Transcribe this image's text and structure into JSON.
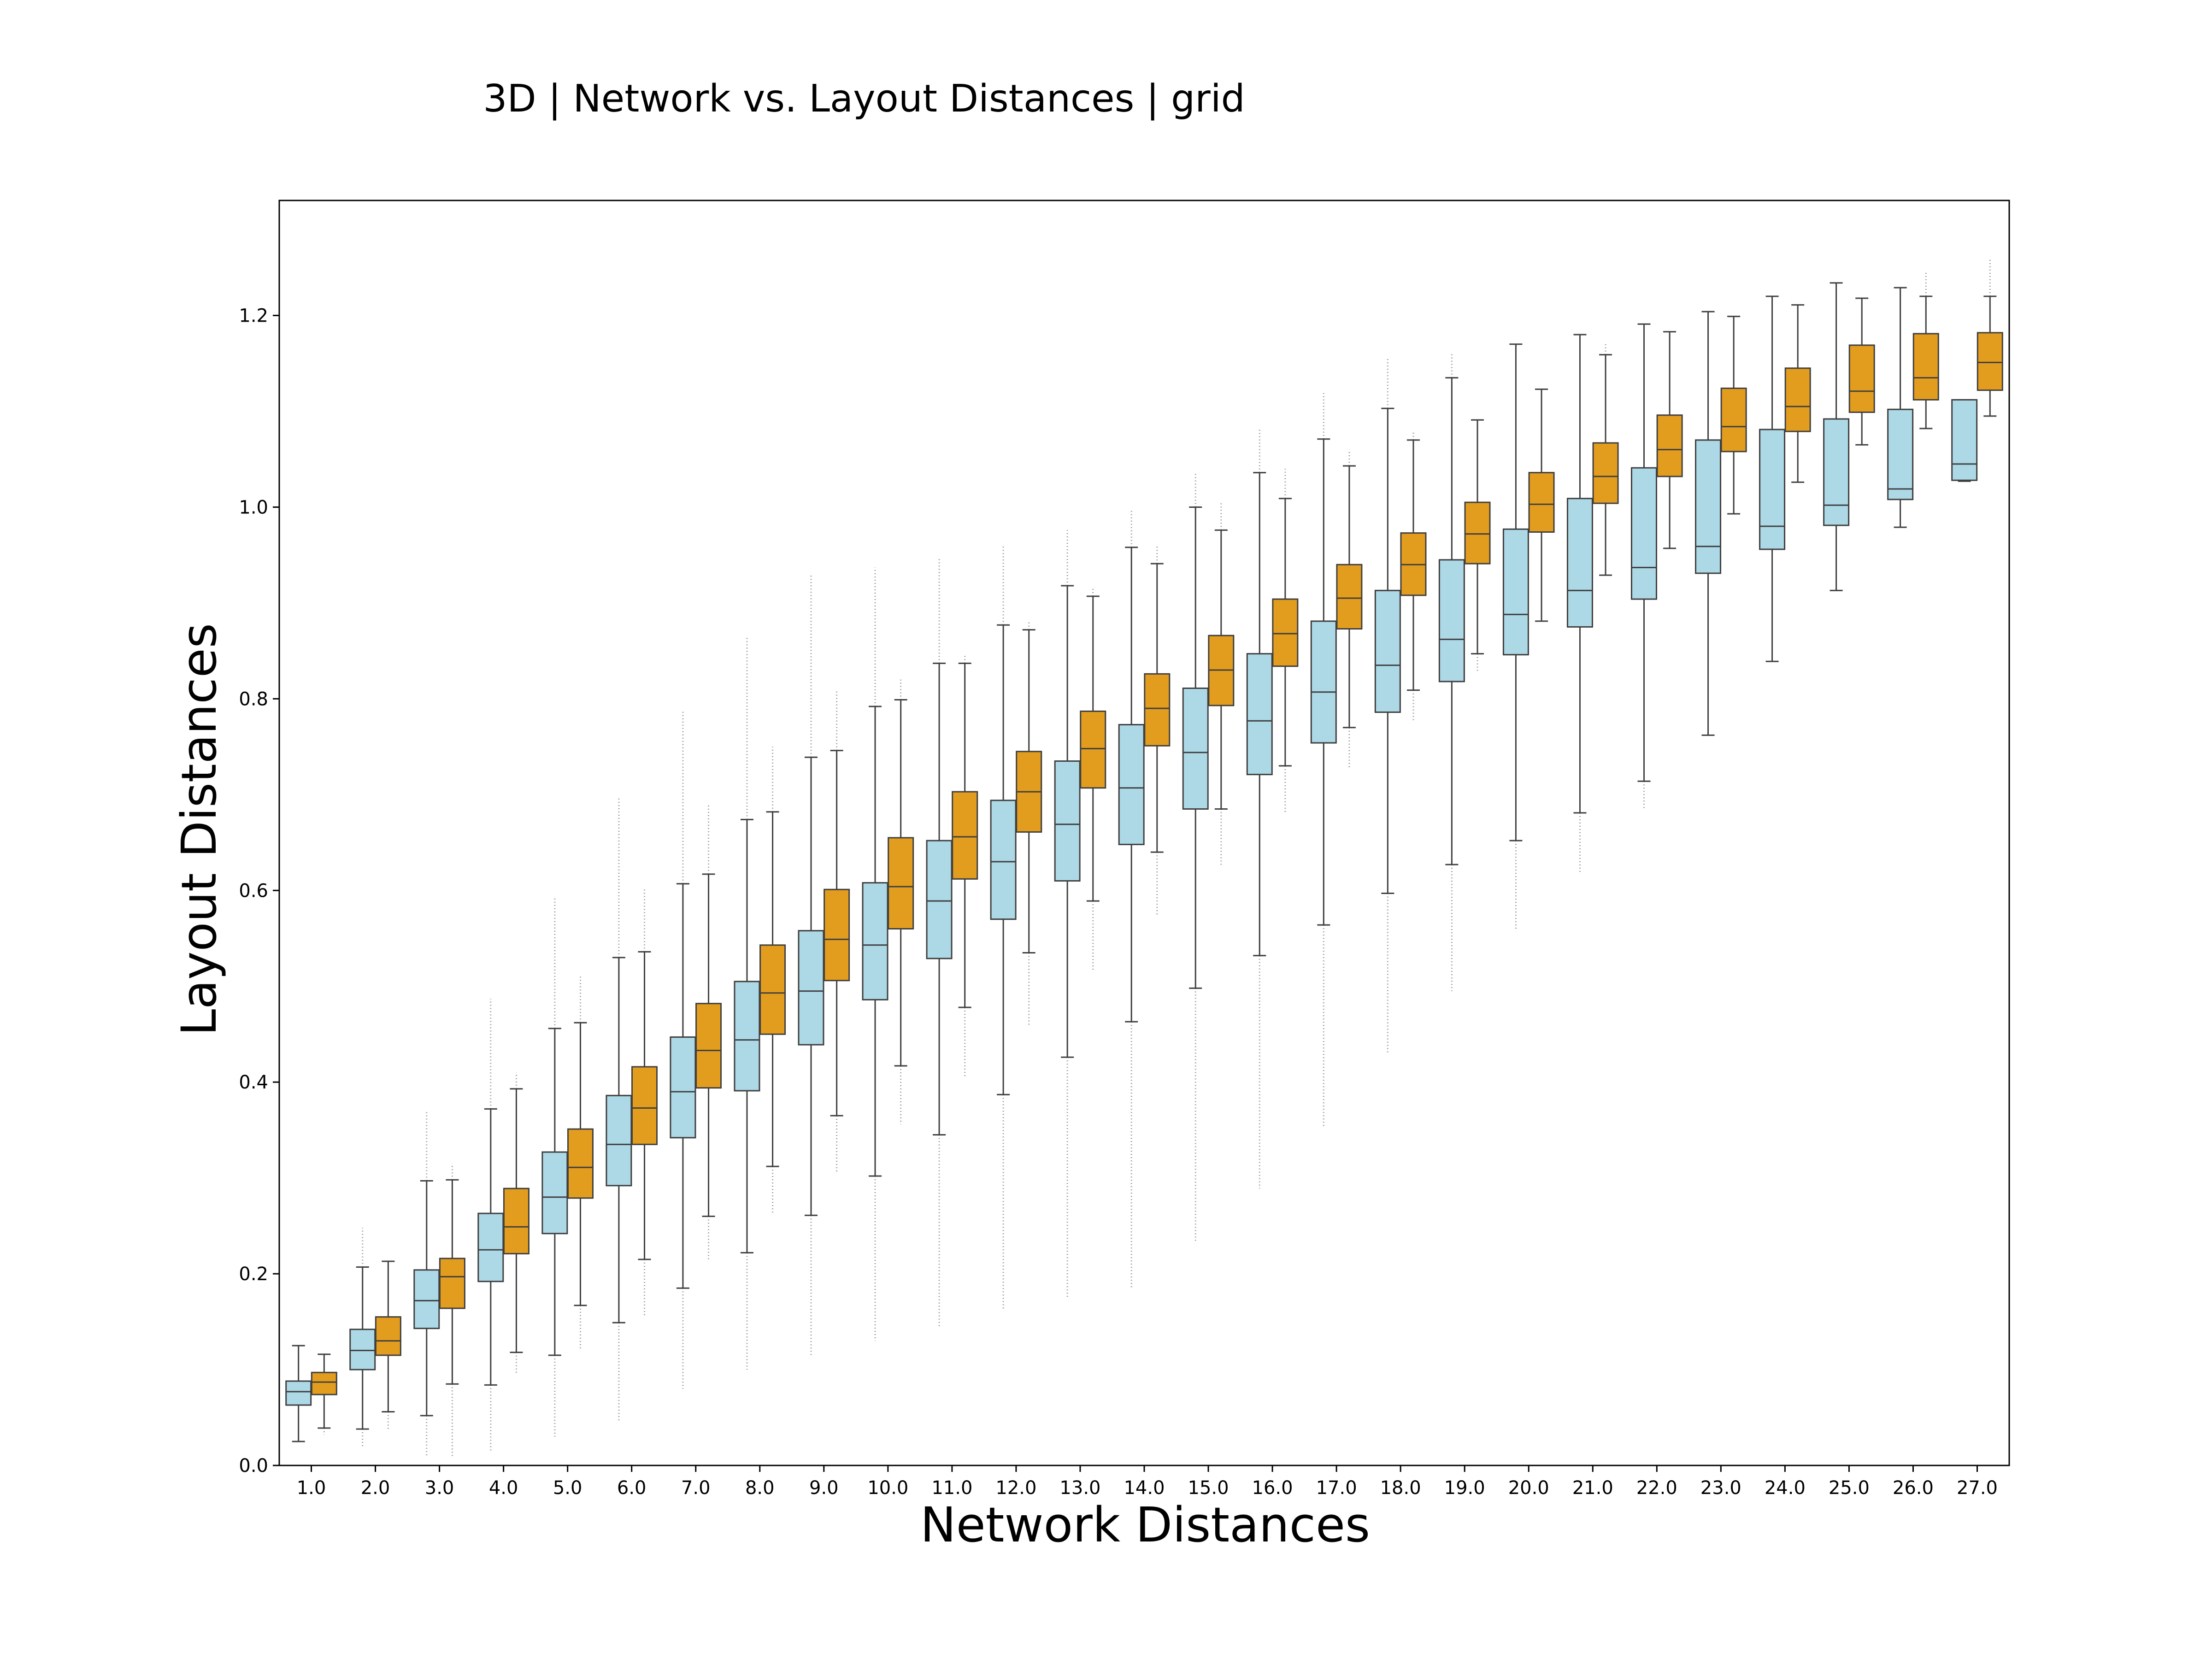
{
  "chart_data": {
    "type": "boxplot",
    "title": "3D | Network vs. Layout Distances | grid",
    "xlabel": "Network Distances",
    "ylabel": "Layout Distances",
    "ylim": [
      0,
      1.32
    ],
    "yticks": [
      "0.0",
      "0.2",
      "0.4",
      "0.6",
      "0.8",
      "1.0",
      "1.2"
    ],
    "grid": false,
    "legend": "none",
    "categories": [
      "1.0",
      "2.0",
      "3.0",
      "4.0",
      "5.0",
      "6.0",
      "7.0",
      "8.0",
      "9.0",
      "10.0",
      "11.0",
      "12.0",
      "13.0",
      "14.0",
      "15.0",
      "16.0",
      "17.0",
      "18.0",
      "19.0",
      "20.0",
      "21.0",
      "22.0",
      "23.0",
      "24.0",
      "25.0",
      "26.0",
      "27.0"
    ],
    "series": [
      {
        "color": "#add8e6",
        "boxes": [
          {
            "whisker_low": 0.025,
            "q1": 0.063,
            "median": 0.077,
            "q3": 0.088,
            "whisker_high": 0.125,
            "outliers_low": 0,
            "outliers_high": 0
          },
          {
            "whisker_low": 0.038,
            "q1": 0.1,
            "median": 0.12,
            "q3": 0.142,
            "whisker_high": 0.207,
            "outliers_low": 0.02,
            "outliers_high": 0.248
          },
          {
            "whisker_low": 0.052,
            "q1": 0.143,
            "median": 0.172,
            "q3": 0.204,
            "whisker_high": 0.297,
            "outliers_low": 0.01,
            "outliers_high": 0.37
          },
          {
            "whisker_low": 0.084,
            "q1": 0.192,
            "median": 0.225,
            "q3": 0.263,
            "whisker_high": 0.372,
            "outliers_low": 0.015,
            "outliers_high": 0.487
          },
          {
            "whisker_low": 0.115,
            "q1": 0.242,
            "median": 0.28,
            "q3": 0.327,
            "whisker_high": 0.456,
            "outliers_low": 0.03,
            "outliers_high": 0.592
          },
          {
            "whisker_low": 0.149,
            "q1": 0.292,
            "median": 0.335,
            "q3": 0.386,
            "whisker_high": 0.53,
            "outliers_low": 0.045,
            "outliers_high": 0.698
          },
          {
            "whisker_low": 0.185,
            "q1": 0.342,
            "median": 0.39,
            "q3": 0.447,
            "whisker_high": 0.607,
            "outliers_low": 0.08,
            "outliers_high": 0.787
          },
          {
            "whisker_low": 0.222,
            "q1": 0.391,
            "median": 0.444,
            "q3": 0.505,
            "whisker_high": 0.674,
            "outliers_low": 0.1,
            "outliers_high": 0.865
          },
          {
            "whisker_low": 0.261,
            "q1": 0.439,
            "median": 0.495,
            "q3": 0.558,
            "whisker_high": 0.739,
            "outliers_low": 0.115,
            "outliers_high": 0.93
          },
          {
            "whisker_low": 0.302,
            "q1": 0.486,
            "median": 0.543,
            "q3": 0.608,
            "whisker_high": 0.792,
            "outliers_low": 0.13,
            "outliers_high": 0.937
          },
          {
            "whisker_low": 0.345,
            "q1": 0.529,
            "median": 0.589,
            "q3": 0.652,
            "whisker_high": 0.837,
            "outliers_low": 0.145,
            "outliers_high": 0.948
          },
          {
            "whisker_low": 0.387,
            "q1": 0.57,
            "median": 0.63,
            "q3": 0.694,
            "whisker_high": 0.877,
            "outliers_low": 0.162,
            "outliers_high": 0.96
          },
          {
            "whisker_low": 0.426,
            "q1": 0.61,
            "median": 0.669,
            "q3": 0.735,
            "whisker_high": 0.918,
            "outliers_low": 0.176,
            "outliers_high": 0.976
          },
          {
            "whisker_low": 0.463,
            "q1": 0.648,
            "median": 0.707,
            "q3": 0.773,
            "whisker_high": 0.958,
            "outliers_low": 0.184,
            "outliers_high": 0.997
          },
          {
            "whisker_low": 0.498,
            "q1": 0.685,
            "median": 0.744,
            "q3": 0.811,
            "whisker_high": 1.0,
            "outliers_low": 0.234,
            "outliers_high": 1.036
          },
          {
            "whisker_low": 0.532,
            "q1": 0.721,
            "median": 0.777,
            "q3": 0.847,
            "whisker_high": 1.036,
            "outliers_low": 0.289,
            "outliers_high": 1.082
          },
          {
            "whisker_low": 0.564,
            "q1": 0.754,
            "median": 0.807,
            "q3": 0.881,
            "whisker_high": 1.071,
            "outliers_low": 0.354,
            "outliers_high": 1.119
          },
          {
            "whisker_low": 0.597,
            "q1": 0.786,
            "median": 0.835,
            "q3": 0.913,
            "whisker_high": 1.103,
            "outliers_low": 0.43,
            "outliers_high": 1.156
          },
          {
            "whisker_low": 0.627,
            "q1": 0.818,
            "median": 0.862,
            "q3": 0.945,
            "whisker_high": 1.135,
            "outliers_low": 0.495,
            "outliers_high": 1.161
          },
          {
            "whisker_low": 0.652,
            "q1": 0.846,
            "median": 0.888,
            "q3": 0.977,
            "whisker_high": 1.17,
            "outliers_low": 0.56,
            "outliers_high": 0
          },
          {
            "whisker_low": 0.681,
            "q1": 0.875,
            "median": 0.913,
            "q3": 1.009,
            "whisker_high": 1.18,
            "outliers_low": 0.617,
            "outliers_high": 0
          },
          {
            "whisker_low": 0.714,
            "q1": 0.904,
            "median": 0.937,
            "q3": 1.041,
            "whisker_high": 1.191,
            "outliers_low": 0.684,
            "outliers_high": 0
          },
          {
            "whisker_low": 0.762,
            "q1": 0.931,
            "median": 0.959,
            "q3": 1.07,
            "whisker_high": 1.204,
            "outliers_low": 0,
            "outliers_high": 0
          },
          {
            "whisker_low": 0.839,
            "q1": 0.956,
            "median": 0.98,
            "q3": 1.081,
            "whisker_high": 1.22,
            "outliers_low": 0,
            "outliers_high": 0
          },
          {
            "whisker_low": 0.913,
            "q1": 0.981,
            "median": 1.002,
            "q3": 1.092,
            "whisker_high": 1.234,
            "outliers_low": 0,
            "outliers_high": 0
          },
          {
            "whisker_low": 0.979,
            "q1": 1.008,
            "median": 1.019,
            "q3": 1.102,
            "whisker_high": 1.229,
            "outliers_low": 0,
            "outliers_high": 0
          },
          {
            "whisker_low": 1.027,
            "q1": 1.028,
            "median": 1.045,
            "q3": 1.112,
            "whisker_high": 1.112,
            "outliers_low": 0,
            "outliers_high": 0
          }
        ]
      },
      {
        "color": "#e39d1e",
        "boxes": [
          {
            "whisker_low": 0.039,
            "q1": 0.074,
            "median": 0.087,
            "q3": 0.097,
            "whisker_high": 0.116,
            "outliers_low": 0.032,
            "outliers_high": 0
          },
          {
            "whisker_low": 0.056,
            "q1": 0.115,
            "median": 0.13,
            "q3": 0.155,
            "whisker_high": 0.213,
            "outliers_low": 0.037,
            "outliers_high": 0
          },
          {
            "whisker_low": 0.085,
            "q1": 0.164,
            "median": 0.197,
            "q3": 0.216,
            "whisker_high": 0.298,
            "outliers_low": 0.01,
            "outliers_high": 0.315
          },
          {
            "whisker_low": 0.118,
            "q1": 0.221,
            "median": 0.249,
            "q3": 0.289,
            "whisker_high": 0.393,
            "outliers_low": 0.095,
            "outliers_high": 0.41
          },
          {
            "whisker_low": 0.167,
            "q1": 0.279,
            "median": 0.311,
            "q3": 0.351,
            "whisker_high": 0.462,
            "outliers_low": 0.121,
            "outliers_high": 0.51
          },
          {
            "whisker_low": 0.215,
            "q1": 0.335,
            "median": 0.373,
            "q3": 0.416,
            "whisker_high": 0.536,
            "outliers_low": 0.155,
            "outliers_high": 0.601
          },
          {
            "whisker_low": 0.26,
            "q1": 0.394,
            "median": 0.433,
            "q3": 0.482,
            "whisker_high": 0.617,
            "outliers_low": 0.214,
            "outliers_high": 0.69
          },
          {
            "whisker_low": 0.312,
            "q1": 0.45,
            "median": 0.493,
            "q3": 0.543,
            "whisker_high": 0.682,
            "outliers_low": 0.263,
            "outliers_high": 0.75
          },
          {
            "whisker_low": 0.365,
            "q1": 0.506,
            "median": 0.549,
            "q3": 0.601,
            "whisker_high": 0.746,
            "outliers_low": 0.306,
            "outliers_high": 0.81
          },
          {
            "whisker_low": 0.417,
            "q1": 0.56,
            "median": 0.604,
            "q3": 0.655,
            "whisker_high": 0.799,
            "outliers_low": 0.356,
            "outliers_high": 0.82
          },
          {
            "whisker_low": 0.478,
            "q1": 0.612,
            "median": 0.656,
            "q3": 0.703,
            "whisker_high": 0.837,
            "outliers_low": 0.404,
            "outliers_high": 0.845
          },
          {
            "whisker_low": 0.535,
            "q1": 0.661,
            "median": 0.703,
            "q3": 0.745,
            "whisker_high": 0.872,
            "outliers_low": 0.458,
            "outliers_high": 0.88
          },
          {
            "whisker_low": 0.589,
            "q1": 0.707,
            "median": 0.748,
            "q3": 0.787,
            "whisker_high": 0.907,
            "outliers_low": 0.515,
            "outliers_high": 0.915
          },
          {
            "whisker_low": 0.64,
            "q1": 0.751,
            "median": 0.79,
            "q3": 0.826,
            "whisker_high": 0.941,
            "outliers_low": 0.575,
            "outliers_high": 0.96
          },
          {
            "whisker_low": 0.685,
            "q1": 0.793,
            "median": 0.83,
            "q3": 0.866,
            "whisker_high": 0.976,
            "outliers_low": 0.625,
            "outliers_high": 1.005
          },
          {
            "whisker_low": 0.73,
            "q1": 0.834,
            "median": 0.868,
            "q3": 0.904,
            "whisker_high": 1.009,
            "outliers_low": 0.68,
            "outliers_high": 1.04
          },
          {
            "whisker_low": 0.77,
            "q1": 0.873,
            "median": 0.905,
            "q3": 0.94,
            "whisker_high": 1.043,
            "outliers_low": 0.727,
            "outliers_high": 1.06
          },
          {
            "whisker_low": 0.809,
            "q1": 0.908,
            "median": 0.94,
            "q3": 0.973,
            "whisker_high": 1.07,
            "outliers_low": 0.777,
            "outliers_high": 1.08
          },
          {
            "whisker_low": 0.847,
            "q1": 0.941,
            "median": 0.972,
            "q3": 1.005,
            "whisker_high": 1.091,
            "outliers_low": 0.827,
            "outliers_high": 0
          },
          {
            "whisker_low": 0.881,
            "q1": 0.974,
            "median": 1.003,
            "q3": 1.036,
            "whisker_high": 1.123,
            "outliers_low": 0,
            "outliers_high": 0
          },
          {
            "whisker_low": 0.929,
            "q1": 1.004,
            "median": 1.032,
            "q3": 1.067,
            "whisker_high": 1.159,
            "outliers_low": 0,
            "outliers_high": 1.17
          },
          {
            "whisker_low": 0.957,
            "q1": 1.032,
            "median": 1.06,
            "q3": 1.096,
            "whisker_high": 1.183,
            "outliers_low": 0,
            "outliers_high": 0
          },
          {
            "whisker_low": 0.993,
            "q1": 1.058,
            "median": 1.084,
            "q3": 1.124,
            "whisker_high": 1.199,
            "outliers_low": 0,
            "outliers_high": 0
          },
          {
            "whisker_low": 1.026,
            "q1": 1.079,
            "median": 1.105,
            "q3": 1.145,
            "whisker_high": 1.211,
            "outliers_low": 0,
            "outliers_high": 0
          },
          {
            "whisker_low": 1.065,
            "q1": 1.099,
            "median": 1.121,
            "q3": 1.169,
            "whisker_high": 1.218,
            "outliers_low": 0,
            "outliers_high": 0
          },
          {
            "whisker_low": 1.082,
            "q1": 1.112,
            "median": 1.135,
            "q3": 1.181,
            "whisker_high": 1.22,
            "outliers_low": 0,
            "outliers_high": 1.245
          },
          {
            "whisker_low": 1.095,
            "q1": 1.122,
            "median": 1.151,
            "q3": 1.182,
            "whisker_high": 1.22,
            "outliers_low": 0,
            "outliers_high": 1.258
          }
        ]
      }
    ]
  }
}
